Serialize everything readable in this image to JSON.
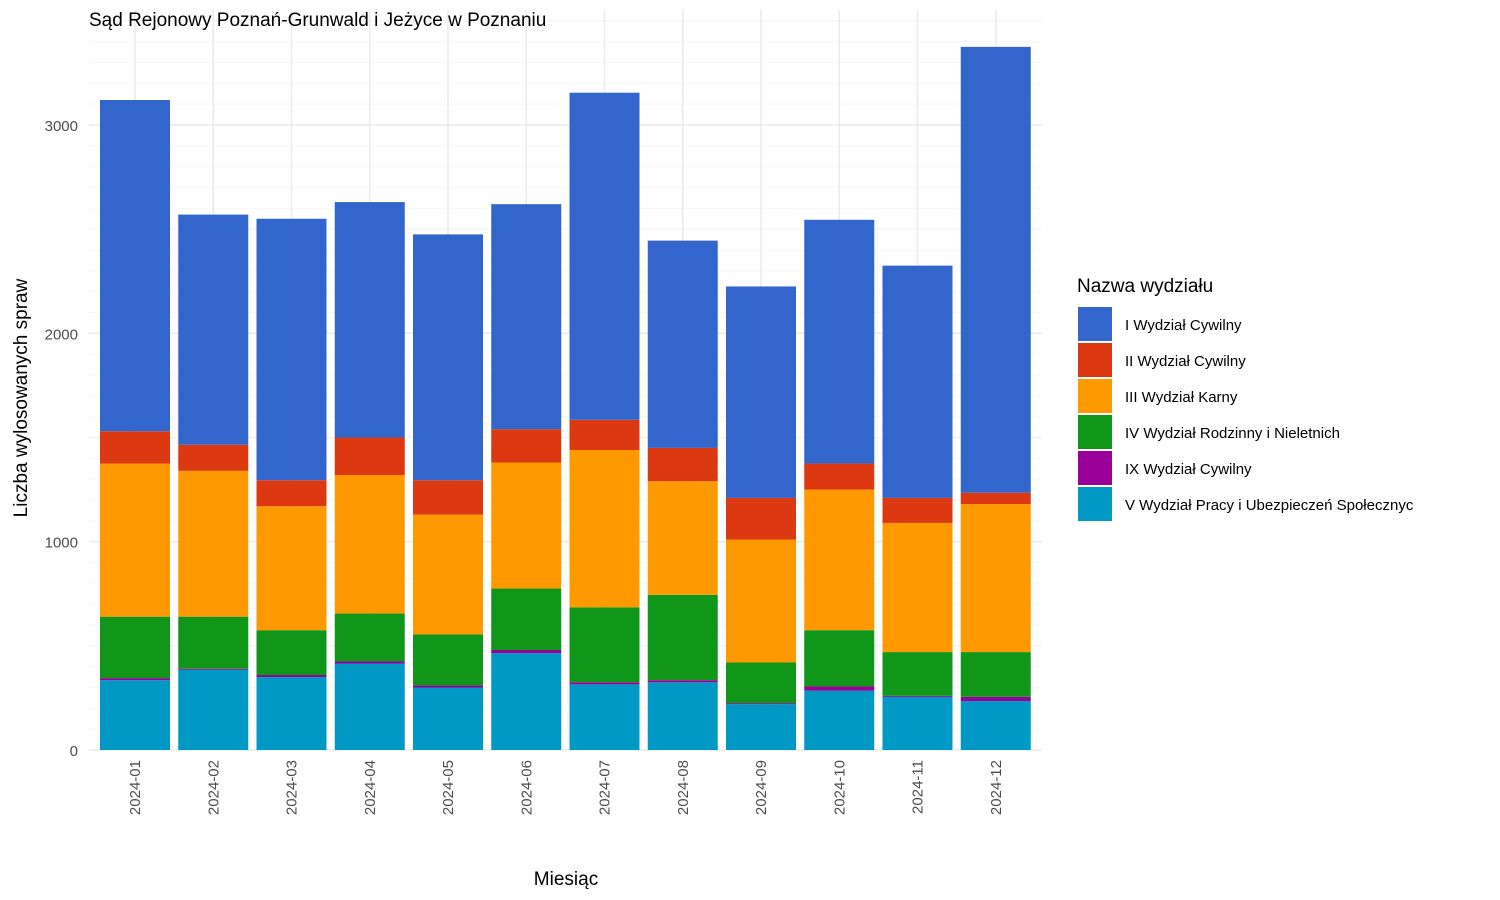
{
  "chart_data": {
    "type": "bar",
    "stacked": true,
    "title": "Sąd Rejonowy Poznań-Grunwald i Jeżyce w Poznaniu",
    "xlabel": "Miesiąc",
    "ylabel": "Liczba wylosowanych spraw",
    "ylim": [
      0,
      3500
    ],
    "yticks": [
      0,
      1000,
      2000,
      3000
    ],
    "grid": true,
    "legend": {
      "title": "Nazwa wydziału",
      "position": "right"
    },
    "categories": [
      "2024-01",
      "2024-02",
      "2024-03",
      "2024-04",
      "2024-05",
      "2024-06",
      "2024-07",
      "2024-08",
      "2024-09",
      "2024-10",
      "2024-11",
      "2024-12"
    ],
    "series": [
      {
        "name": "V Wydział Pracy i Ubezpieczeń Społecznyc",
        "color": "#0099C6",
        "values": [
          335,
          385,
          350,
          415,
          300,
          465,
          315,
          325,
          220,
          285,
          255,
          235
        ]
      },
      {
        "name": "IX Wydział Cywilny",
        "color": "#990099",
        "values": [
          10,
          5,
          10,
          10,
          10,
          15,
          10,
          10,
          5,
          20,
          5,
          20
        ]
      },
      {
        "name": "IV Wydział Rodzinny i Nieletnich",
        "color": "#109618",
        "values": [
          295,
          250,
          215,
          230,
          245,
          295,
          360,
          410,
          195,
          270,
          210,
          215
        ]
      },
      {
        "name": "III Wydział Karny",
        "color": "#FF9900",
        "values": [
          735,
          700,
          595,
          665,
          575,
          605,
          755,
          545,
          590,
          675,
          620,
          710
        ]
      },
      {
        "name": "II Wydział Cywilny",
        "color": "#DC3912",
        "values": [
          155,
          125,
          125,
          180,
          165,
          160,
          145,
          160,
          200,
          125,
          120,
          55
        ]
      },
      {
        "name": "I Wydział Cywilny",
        "color": "#3366CC",
        "values": [
          1590,
          1105,
          1255,
          1130,
          1180,
          1080,
          1570,
          995,
          1015,
          1170,
          1115,
          2140
        ]
      }
    ]
  },
  "legend_order": [
    "I Wydział Cywilny",
    "II Wydział Cywilny",
    "III Wydział Karny",
    "IV Wydział Rodzinny i Nieletnich",
    "IX Wydział Cywilny",
    "V Wydział Pracy i Ubezpieczeń Społecznyc"
  ]
}
